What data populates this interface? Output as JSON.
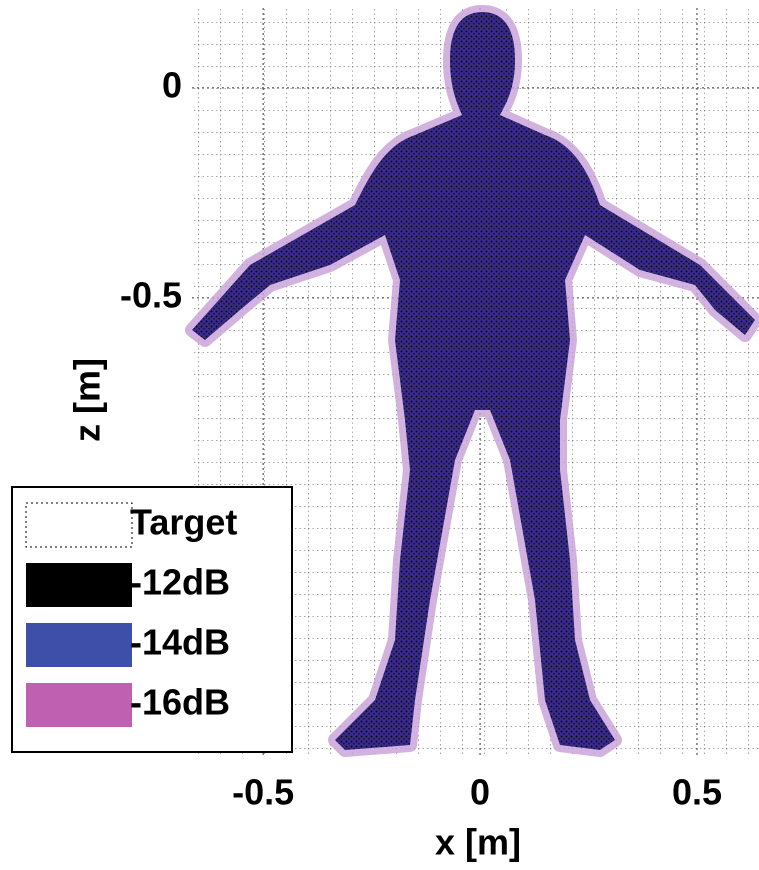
{
  "chart_data": {
    "type": "image",
    "xlabel": "x [m]",
    "ylabel": "z [m]",
    "xlim": [
      -0.664,
      0.643
    ],
    "ylim": [
      -1.588,
      0.19
    ],
    "xticks": [
      -0.5,
      0,
      0.5
    ],
    "yticks": [
      0,
      -0.5
    ],
    "grid": true,
    "legend": {
      "position": "lower left",
      "entries": [
        {
          "name": "Target",
          "color": "#ffffff"
        },
        {
          "name": "-12dB",
          "color": "#000000"
        },
        {
          "name": "-14dB",
          "color": "#3d4fa8"
        },
        {
          "name": "-16dB",
          "color": "#c060b0"
        }
      ]
    }
  }
}
